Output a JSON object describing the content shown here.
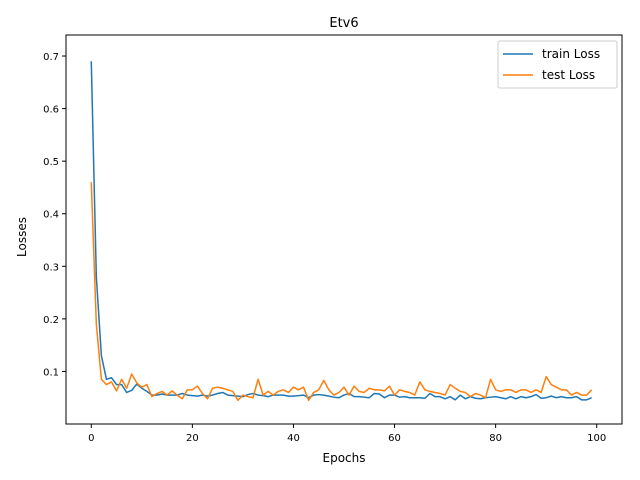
{
  "chart_data": {
    "type": "line",
    "title": "Etv6",
    "xlabel": "Epochs",
    "ylabel": "Losses",
    "xlim": [
      -5,
      105
    ],
    "ylim": [
      0.0,
      0.74
    ],
    "xticks": [
      0,
      20,
      40,
      60,
      80,
      100
    ],
    "yticks": [
      0.1,
      0.2,
      0.3,
      0.4,
      0.5,
      0.6,
      0.7
    ],
    "ytick_labels": [
      "0.1",
      "0.2",
      "0.3",
      "0.4",
      "0.5",
      "0.6",
      "0.7"
    ],
    "legend_position": "top-right",
    "grid": false,
    "series": [
      {
        "name": "train Loss",
        "color": "#1f77b4",
        "x": [
          0,
          1,
          2,
          3,
          4,
          5,
          6,
          7,
          8,
          9,
          10,
          11,
          12,
          13,
          14,
          15,
          16,
          17,
          18,
          19,
          20,
          21,
          22,
          23,
          24,
          25,
          26,
          27,
          28,
          29,
          30,
          31,
          32,
          33,
          34,
          35,
          36,
          37,
          38,
          39,
          40,
          41,
          42,
          43,
          44,
          45,
          46,
          47,
          48,
          49,
          50,
          51,
          52,
          53,
          54,
          55,
          56,
          57,
          58,
          59,
          60,
          61,
          62,
          63,
          64,
          65,
          66,
          67,
          68,
          69,
          70,
          71,
          72,
          73,
          74,
          75,
          76,
          77,
          78,
          79,
          80,
          81,
          82,
          83,
          84,
          85,
          86,
          87,
          88,
          89,
          90,
          91,
          92,
          93,
          94,
          95,
          96,
          97,
          98,
          99
        ],
        "values": [
          0.69,
          0.28,
          0.13,
          0.085,
          0.088,
          0.075,
          0.075,
          0.06,
          0.064,
          0.076,
          0.068,
          0.062,
          0.055,
          0.055,
          0.057,
          0.055,
          0.055,
          0.055,
          0.058,
          0.055,
          0.054,
          0.053,
          0.055,
          0.053,
          0.055,
          0.058,
          0.06,
          0.055,
          0.054,
          0.053,
          0.052,
          0.056,
          0.058,
          0.055,
          0.054,
          0.052,
          0.055,
          0.055,
          0.055,
          0.053,
          0.053,
          0.054,
          0.055,
          0.05,
          0.055,
          0.056,
          0.055,
          0.053,
          0.051,
          0.05,
          0.055,
          0.058,
          0.052,
          0.052,
          0.051,
          0.05,
          0.058,
          0.057,
          0.05,
          0.055,
          0.055,
          0.051,
          0.052,
          0.05,
          0.05,
          0.05,
          0.049,
          0.058,
          0.052,
          0.052,
          0.048,
          0.052,
          0.046,
          0.055,
          0.048,
          0.052,
          0.049,
          0.048,
          0.05,
          0.051,
          0.052,
          0.05,
          0.048,
          0.052,
          0.048,
          0.052,
          0.05,
          0.052,
          0.056,
          0.049,
          0.05,
          0.053,
          0.05,
          0.052,
          0.05,
          0.05,
          0.052,
          0.046,
          0.046,
          0.05
        ]
      },
      {
        "name": "test Loss",
        "color": "#ff7f0e",
        "x": [
          0,
          1,
          2,
          3,
          4,
          5,
          6,
          7,
          8,
          9,
          10,
          11,
          12,
          13,
          14,
          15,
          16,
          17,
          18,
          19,
          20,
          21,
          22,
          23,
          24,
          25,
          26,
          27,
          28,
          29,
          30,
          31,
          32,
          33,
          34,
          35,
          36,
          37,
          38,
          39,
          40,
          41,
          42,
          43,
          44,
          45,
          46,
          47,
          48,
          49,
          50,
          51,
          52,
          53,
          54,
          55,
          56,
          57,
          58,
          59,
          60,
          61,
          62,
          63,
          64,
          65,
          66,
          67,
          68,
          69,
          70,
          71,
          72,
          73,
          74,
          75,
          76,
          77,
          78,
          79,
          80,
          81,
          82,
          83,
          84,
          85,
          86,
          87,
          88,
          89,
          90,
          91,
          92,
          93,
          94,
          95,
          96,
          97,
          98,
          99
        ],
        "values": [
          0.46,
          0.19,
          0.085,
          0.075,
          0.08,
          0.063,
          0.085,
          0.068,
          0.095,
          0.078,
          0.07,
          0.075,
          0.052,
          0.058,
          0.062,
          0.055,
          0.063,
          0.055,
          0.048,
          0.065,
          0.065,
          0.072,
          0.058,
          0.048,
          0.068,
          0.07,
          0.068,
          0.065,
          0.062,
          0.045,
          0.055,
          0.052,
          0.05,
          0.085,
          0.055,
          0.062,
          0.055,
          0.062,
          0.065,
          0.06,
          0.07,
          0.065,
          0.07,
          0.045,
          0.06,
          0.065,
          0.083,
          0.065,
          0.055,
          0.06,
          0.07,
          0.055,
          0.072,
          0.062,
          0.06,
          0.068,
          0.065,
          0.065,
          0.063,
          0.072,
          0.055,
          0.065,
          0.062,
          0.06,
          0.055,
          0.08,
          0.065,
          0.062,
          0.06,
          0.058,
          0.055,
          0.075,
          0.068,
          0.062,
          0.06,
          0.052,
          0.058,
          0.055,
          0.05,
          0.085,
          0.065,
          0.062,
          0.065,
          0.065,
          0.06,
          0.065,
          0.065,
          0.06,
          0.065,
          0.06,
          0.09,
          0.075,
          0.07,
          0.065,
          0.065,
          0.055,
          0.06,
          0.055,
          0.055,
          0.065
        ]
      }
    ]
  }
}
